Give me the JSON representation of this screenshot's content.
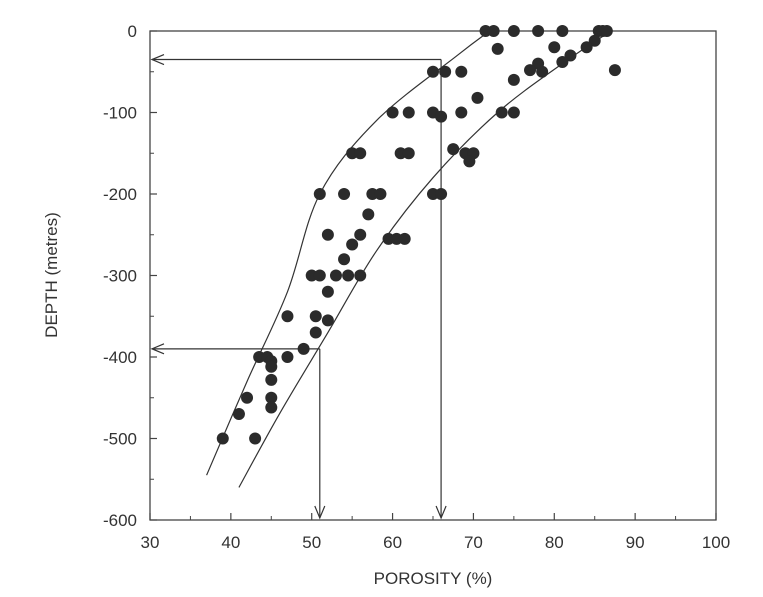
{
  "chart_data": {
    "type": "scatter",
    "xlabel": "POROSITY (%)",
    "ylabel": "DEPTH (metres)",
    "xlim": [
      30,
      100
    ],
    "ylim": [
      -600,
      0
    ],
    "x_ticks": [
      30,
      40,
      50,
      60,
      70,
      80,
      90,
      100
    ],
    "y_ticks": [
      0,
      -100,
      -200,
      -300,
      -400,
      -500,
      -600
    ],
    "x_tick_labels": [
      "30",
      "40",
      "50",
      "60",
      "70",
      "80",
      "90",
      "100"
    ],
    "y_tick_labels": [
      "0",
      "-100",
      "-200",
      "-300",
      "-400",
      "-500",
      "-600"
    ],
    "grid": false,
    "points": [
      {
        "x": 71.5,
        "y": 0
      },
      {
        "x": 72.5,
        "y": 0
      },
      {
        "x": 75,
        "y": 0
      },
      {
        "x": 78,
        "y": 0
      },
      {
        "x": 81,
        "y": 0
      },
      {
        "x": 85.5,
        "y": 0
      },
      {
        "x": 86,
        "y": 0
      },
      {
        "x": 86.5,
        "y": 0
      },
      {
        "x": 73,
        "y": -22
      },
      {
        "x": 85,
        "y": -12
      },
      {
        "x": 84,
        "y": -20
      },
      {
        "x": 80,
        "y": -20
      },
      {
        "x": 82,
        "y": -30
      },
      {
        "x": 81,
        "y": -38
      },
      {
        "x": 78,
        "y": -40
      },
      {
        "x": 77,
        "y": -48
      },
      {
        "x": 78.5,
        "y": -50
      },
      {
        "x": 87.5,
        "y": -48
      },
      {
        "x": 75,
        "y": -60
      },
      {
        "x": 65,
        "y": -50
      },
      {
        "x": 66.5,
        "y": -50
      },
      {
        "x": 68.5,
        "y": -50
      },
      {
        "x": 70.5,
        "y": -82
      },
      {
        "x": 73.5,
        "y": -100
      },
      {
        "x": 75,
        "y": -100
      },
      {
        "x": 60,
        "y": -100
      },
      {
        "x": 62,
        "y": -100
      },
      {
        "x": 65,
        "y": -100
      },
      {
        "x": 66,
        "y": -105
      },
      {
        "x": 68.5,
        "y": -100
      },
      {
        "x": 55,
        "y": -150
      },
      {
        "x": 56,
        "y": -150
      },
      {
        "x": 61,
        "y": -150
      },
      {
        "x": 62,
        "y": -150
      },
      {
        "x": 67.5,
        "y": -145
      },
      {
        "x": 69,
        "y": -150
      },
      {
        "x": 70,
        "y": -150
      },
      {
        "x": 69.5,
        "y": -160
      },
      {
        "x": 51,
        "y": -200
      },
      {
        "x": 54,
        "y": -200
      },
      {
        "x": 57.5,
        "y": -200
      },
      {
        "x": 58.5,
        "y": -200
      },
      {
        "x": 65,
        "y": -200
      },
      {
        "x": 66,
        "y": -200
      },
      {
        "x": 57,
        "y": -225
      },
      {
        "x": 52,
        "y": -250
      },
      {
        "x": 56,
        "y": -250
      },
      {
        "x": 59.5,
        "y": -255
      },
      {
        "x": 60.5,
        "y": -255
      },
      {
        "x": 61.5,
        "y": -255
      },
      {
        "x": 55,
        "y": -262
      },
      {
        "x": 54,
        "y": -280
      },
      {
        "x": 50,
        "y": -300
      },
      {
        "x": 51,
        "y": -300
      },
      {
        "x": 53,
        "y": -300
      },
      {
        "x": 54.5,
        "y": -300
      },
      {
        "x": 56,
        "y": -300
      },
      {
        "x": 52,
        "y": -320
      },
      {
        "x": 47,
        "y": -350
      },
      {
        "x": 50.5,
        "y": -350
      },
      {
        "x": 52,
        "y": -355
      },
      {
        "x": 50.5,
        "y": -370
      },
      {
        "x": 49,
        "y": -390
      },
      {
        "x": 43.5,
        "y": -400
      },
      {
        "x": 44.5,
        "y": -400
      },
      {
        "x": 45,
        "y": -405
      },
      {
        "x": 47,
        "y": -400
      },
      {
        "x": 45,
        "y": -412
      },
      {
        "x": 45,
        "y": -428
      },
      {
        "x": 45,
        "y": -450
      },
      {
        "x": 45,
        "y": -462
      },
      {
        "x": 42,
        "y": -450
      },
      {
        "x": 41,
        "y": -470
      },
      {
        "x": 39,
        "y": -500
      },
      {
        "x": 43,
        "y": -500
      }
    ],
    "envelope_curves": [
      {
        "points": [
          [
            37,
            -545
          ],
          [
            42,
            -430
          ],
          [
            47,
            -320
          ],
          [
            51,
            -200
          ],
          [
            58,
            -110
          ],
          [
            68,
            -30
          ],
          [
            72,
            0
          ]
        ]
      },
      {
        "points": [
          [
            41,
            -560
          ],
          [
            46,
            -470
          ],
          [
            52,
            -370
          ],
          [
            58,
            -270
          ],
          [
            65,
            -180
          ],
          [
            73,
            -100
          ],
          [
            81,
            -40
          ],
          [
            87,
            0
          ]
        ]
      }
    ],
    "annotations": [
      {
        "type": "arrow-to-y-axis",
        "from_x": 66,
        "at_y": -35
      },
      {
        "type": "arrow-to-x-axis",
        "at_x": 66,
        "from_y": -35
      },
      {
        "type": "arrow-to-y-axis",
        "from_x": 51,
        "at_y": -390
      },
      {
        "type": "arrow-to-x-axis",
        "at_x": 51,
        "from_y": -390
      }
    ]
  }
}
